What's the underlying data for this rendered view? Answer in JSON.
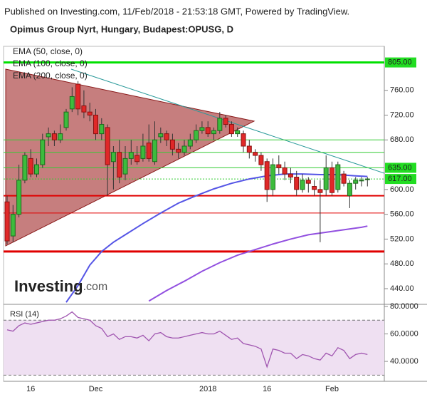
{
  "header": {
    "published": "Published on Investing.com, 11/Feb/2018 - 21:53:18 GMT, Powered by TradingView."
  },
  "watermark": {
    "brand": "Investing",
    "suffix": ".com"
  },
  "chart_data": [
    {
      "type": "candlestick",
      "title": "Opimus Group Nyrt, Hungary, Budapest:OPUSG, D",
      "categories": [
        null,
        null,
        null,
        null,
        "16",
        null,
        null,
        null,
        null,
        null,
        null,
        null,
        null,
        null,
        null,
        "Dec",
        null,
        null,
        null,
        null,
        null,
        null,
        null,
        null,
        null,
        null,
        null,
        null,
        null,
        null,
        null,
        null,
        null,
        null,
        "2018",
        null,
        null,
        null,
        null,
        null,
        null,
        null,
        null,
        null,
        "16",
        null,
        null,
        null,
        null,
        null,
        null,
        null,
        null,
        null,
        null,
        "Feb",
        null,
        null,
        null,
        null,
        null,
        null
      ],
      "open": [
        580,
        525,
        560,
        615,
        650,
        625,
        640,
        685,
        690,
        680,
        700,
        730,
        770,
        735,
        725,
        720,
        690,
        700,
        645,
        660,
        625,
        650,
        655,
        650,
        675,
        645,
        685,
        690,
        680,
        665,
        660,
        670,
        680,
        695,
        700,
        690,
        695,
        715,
        705,
        690,
        690,
        670,
        660,
        655,
        645,
        600,
        640,
        635,
        625,
        620,
        600,
        615,
        605,
        600,
        600,
        635,
        600,
        625,
        590,
        610,
        615,
        617
      ],
      "high": [
        590,
        575,
        640,
        660,
        665,
        650,
        690,
        700,
        695,
        705,
        730,
        765,
        775,
        760,
        740,
        730,
        715,
        705,
        670,
        680,
        670,
        680,
        670,
        690,
        705,
        710,
        700,
        695,
        690,
        675,
        680,
        690,
        705,
        710,
        710,
        700,
        725,
        720,
        710,
        700,
        695,
        680,
        665,
        660,
        650,
        650,
        655,
        645,
        635,
        630,
        625,
        620,
        615,
        615,
        655,
        645,
        645,
        630,
        615,
        620,
        620,
        620
      ],
      "low": [
        512,
        515,
        555,
        610,
        620,
        620,
        635,
        670,
        670,
        675,
        695,
        725,
        720,
        715,
        710,
        680,
        680,
        590,
        600,
        610,
        615,
        640,
        640,
        645,
        645,
        640,
        675,
        670,
        655,
        650,
        655,
        665,
        675,
        690,
        685,
        680,
        690,
        700,
        685,
        685,
        660,
        650,
        645,
        630,
        580,
        590,
        625,
        615,
        610,
        590,
        595,
        595,
        590,
        515,
        590,
        590,
        595,
        605,
        570,
        600,
        605,
        605
      ],
      "close": [
        517,
        560,
        615,
        655,
        625,
        640,
        680,
        690,
        680,
        690,
        725,
        750,
        730,
        725,
        720,
        690,
        705,
        640,
        660,
        620,
        650,
        660,
        645,
        670,
        650,
        680,
        690,
        680,
        665,
        660,
        670,
        680,
        695,
        700,
        690,
        695,
        715,
        705,
        690,
        695,
        670,
        660,
        655,
        640,
        600,
        640,
        635,
        625,
        620,
        600,
        615,
        610,
        600,
        595,
        635,
        595,
        640,
        610,
        610,
        615,
        615,
        617
      ],
      "up_color": "#3dbb3d",
      "down_color": "#e02828",
      "series": [
        {
          "name": "EMA (50, close, 0)",
          "color": "#5555e6",
          "x": [
            10,
            12,
            14,
            16,
            18,
            20,
            23,
            26,
            29,
            32,
            35,
            38,
            41,
            44,
            47,
            50,
            53,
            56,
            59,
            61
          ],
          "values": [
            418,
            445,
            478,
            500,
            515,
            527,
            545,
            562,
            578,
            590,
            601,
            610,
            617,
            622,
            625,
            625,
            624,
            624,
            622,
            621
          ]
        },
        {
          "name": "EMA (100, close, 0)",
          "color": "#3a8fd6",
          "x": [],
          "values": []
        },
        {
          "name": "EMA (200, close, 0)",
          "color": "#9250e0",
          "x": [
            24,
            27,
            30,
            33,
            36,
            39,
            42,
            45,
            48,
            51,
            54,
            57,
            60,
            61
          ],
          "values": [
            420,
            437,
            452,
            468,
            482,
            494,
            503,
            512,
            520,
            527,
            531,
            535,
            539,
            541
          ]
        }
      ],
      "levels": [
        {
          "value": 805,
          "color": "#00e000",
          "style": "thick"
        },
        {
          "value": 680,
          "color": "#33cc33",
          "style": "thin"
        },
        {
          "value": 660,
          "color": "#33cc33",
          "style": "thin"
        },
        {
          "value": 635,
          "color": "#33cc33",
          "style": "thin"
        },
        {
          "value": 617,
          "color": "#33cc33",
          "style": "dotted"
        },
        {
          "value": 590,
          "color": "#e00000",
          "style": "medium"
        },
        {
          "value": 562,
          "color": "#e00000",
          "style": "thin"
        },
        {
          "value": 500,
          "color": "#e00000",
          "style": "thick"
        }
      ],
      "price_labels": [
        {
          "value": 805,
          "label": "805.00"
        },
        {
          "value": 635,
          "label": "635.00"
        },
        {
          "value": 617,
          "label": "617.00"
        }
      ],
      "price_label_color": "#22dd22",
      "ylim": [
        417,
        831
      ],
      "yticks": [
        {
          "value": 760,
          "label": "760.00"
        },
        {
          "value": 720,
          "label": "720.00"
        },
        {
          "value": 680,
          "label": "680.00"
        },
        {
          "value": 600,
          "label": "600.00"
        },
        {
          "value": 560,
          "label": "560.00"
        },
        {
          "value": 520,
          "label": "520.00"
        },
        {
          "value": 480,
          "label": "480.00"
        },
        {
          "value": 440,
          "label": "440.00"
        }
      ]
    },
    {
      "type": "line",
      "title": "RSI (14)",
      "values": [
        63,
        62,
        66,
        68,
        67,
        68,
        69,
        70,
        70,
        71,
        73,
        76,
        72,
        71,
        70,
        66,
        64,
        58,
        60,
        56,
        58,
        58,
        57,
        59,
        55,
        60,
        61,
        58,
        57,
        57,
        58,
        59,
        60,
        61,
        60,
        60,
        62,
        59,
        56,
        57,
        53,
        52,
        51,
        49,
        36,
        49,
        48,
        46,
        46,
        42,
        45,
        44,
        42,
        41,
        46,
        44,
        50,
        48,
        42,
        45,
        46,
        45
      ],
      "color": "#a055b0",
      "band": [
        30,
        70
      ],
      "band_color": "#efe0f2",
      "ylim": [
        25.5,
        81
      ],
      "yticks": [
        {
          "value": 80,
          "label": "80.0000"
        },
        {
          "value": 60,
          "label": "60.0000"
        },
        {
          "value": 40,
          "label": "40.0000"
        }
      ]
    }
  ]
}
